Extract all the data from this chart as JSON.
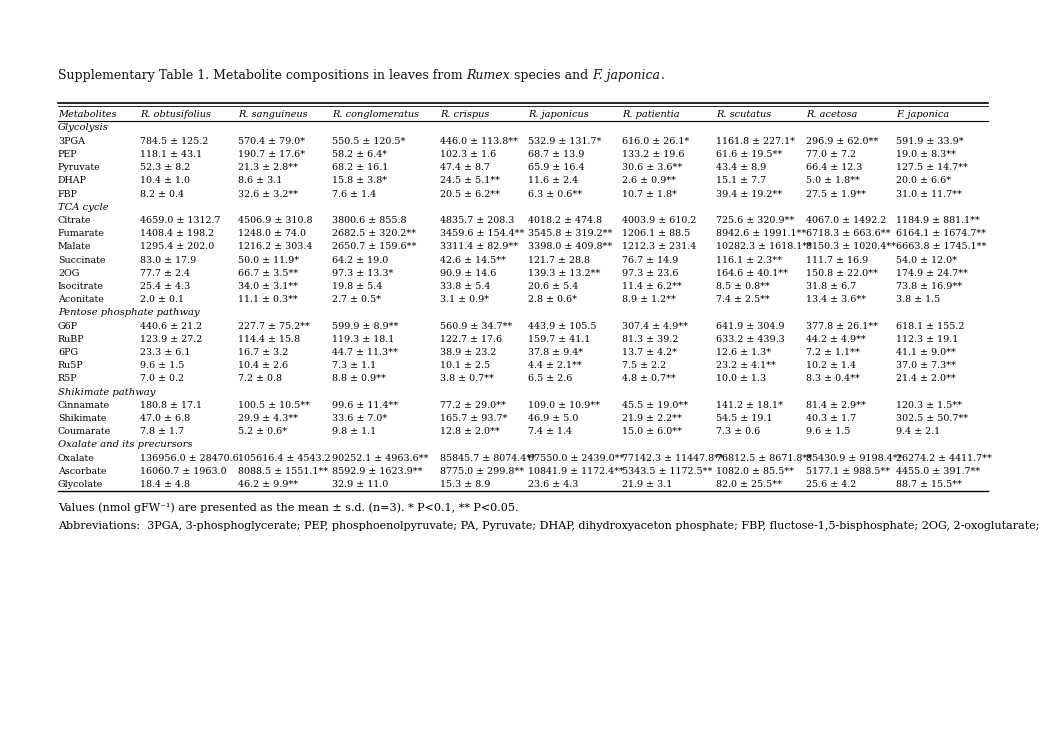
{
  "columns": [
    "Metabolites",
    "R. obtusifolius",
    "R. sanguineus",
    "R. conglomeratus",
    "R. crispus",
    "R. japonicus",
    "R. patientia",
    "R. scutatus",
    "R. acetosa",
    "F. japonica"
  ],
  "sections": [
    {
      "header": "Glycolysis",
      "rows": [
        [
          "3PGA",
          "784.5 ± 125.2",
          "570.4 ± 79.0*",
          "550.5 ± 120.5*",
          "446.0 ± 113.8**",
          "532.9 ± 131.7*",
          "616.0 ± 26.1*",
          "1161.8 ± 227.1*",
          "296.9 ± 62.0**",
          "591.9 ± 33.9*"
        ],
        [
          "PEP",
          "118.1 ± 43.1",
          "190.7 ± 17.6*",
          "58.2 ± 6.4*",
          "102.3 ± 1.6",
          "68.7 ± 13.9",
          "133.2 ± 19.6",
          "61.6 ± 19.5**",
          "77.0 ± 7.2",
          "19.0 ± 8.3**"
        ],
        [
          "Pyruvate",
          "52.3 ± 8.2",
          "21.3 ± 2.8**",
          "68.2 ± 16.1",
          "47.4 ± 8.7",
          "65.9 ± 16.4",
          "30.6 ± 3.6**",
          "43.4 ± 8.9",
          "66.4 ± 12.3",
          "127.5 ± 14.7**"
        ],
        [
          "DHAP",
          "10.4 ± 1.0",
          "8.6 ± 3.1",
          "15.8 ± 3.8*",
          "24.5 ± 5.1**",
          "11.6 ± 2.4",
          "2.6 ± 0.9**",
          "15.1 ± 7.7",
          "5.0 ± 1.8**",
          "20.0 ± 6.6*"
        ],
        [
          "FBP",
          "8.2 ± 0.4",
          "32.6 ± 3.2**",
          "7.6 ± 1.4",
          "20.5 ± 6.2**",
          "6.3 ± 0.6**",
          "10.7 ± 1.8*",
          "39.4 ± 19.2**",
          "27.5 ± 1.9**",
          "31.0 ± 11.7**"
        ]
      ]
    },
    {
      "header": "TCA cycle",
      "rows": [
        [
          "Citrate",
          "4659.0 ± 1312.7",
          "4506.9 ± 310.8",
          "3800.6 ± 855.8",
          "4835.7 ± 208.3",
          "4018.2 ± 474.8",
          "4003.9 ± 610.2",
          "725.6 ± 320.9**",
          "4067.0 ± 1492.2",
          "1184.9 ± 881.1**"
        ],
        [
          "Fumarate",
          "1408.4 ± 198.2",
          "1248.0 ± 74.0",
          "2682.5 ± 320.2**",
          "3459.6 ± 154.4**",
          "3545.8 ± 319.2**",
          "1206.1 ± 88.5",
          "8942.6 ± 1991.1**",
          "6718.3 ± 663.6**",
          "6164.1 ± 1674.7**"
        ],
        [
          "Malate",
          "1295.4 ± 202.0",
          "1216.2 ± 303.4",
          "2650.7 ± 159.6**",
          "3311.4 ± 82.9**",
          "3398.0 ± 409.8**",
          "1212.3 ± 231.4",
          "10282.3 ± 1618.1**",
          "8150.3 ± 1020.4**",
          "6663.8 ± 1745.1**"
        ],
        [
          "Succinate",
          "83.0 ± 17.9",
          "50.0 ± 11.9*",
          "64.2 ± 19.0",
          "42.6 ± 14.5**",
          "121.7 ± 28.8",
          "76.7 ± 14.9",
          "116.1 ± 2.3**",
          "111.7 ± 16.9",
          "54.0 ± 12.0*"
        ],
        [
          "2OG",
          "77.7 ± 2.4",
          "66.7 ± 3.5**",
          "97.3 ± 13.3*",
          "90.9 ± 14.6",
          "139.3 ± 13.2**",
          "97.3 ± 23.6",
          "164.6 ± 40.1**",
          "150.8 ± 22.0**",
          "174.9 ± 24.7**"
        ],
        [
          "Isocitrate",
          "25.4 ± 4.3",
          "34.0 ± 3.1**",
          "19.8 ± 5.4",
          "33.8 ± 5.4",
          "20.6 ± 5.4",
          "11.4 ± 6.2**",
          "8.5 ± 0.8**",
          "31.8 ± 6.7",
          "73.8 ± 16.9**"
        ],
        [
          "Aconitate",
          "2.0 ± 0.1",
          "11.1 ± 0.3**",
          "2.7 ± 0.5*",
          "3.1 ± 0.9*",
          "2.8 ± 0.6*",
          "8.9 ± 1.2**",
          "7.4 ± 2.5**",
          "13.4 ± 3.6**",
          "3.8 ± 1.5"
        ]
      ]
    },
    {
      "header": "Pentose phosphate pathway",
      "rows": [
        [
          "G6P",
          "440.6 ± 21.2",
          "227.7 ± 75.2**",
          "599.9 ± 8.9**",
          "560.9 ± 34.7**",
          "443.9 ± 105.5",
          "307.4 ± 4.9**",
          "641.9 ± 304.9",
          "377.8 ± 26.1**",
          "618.1 ± 155.2"
        ],
        [
          "RuBP",
          "123.9 ± 27.2",
          "114.4 ± 15.8",
          "119.3 ± 18.1",
          "122.7 ± 17.6",
          "159.7 ± 41.1",
          "81.3 ± 39.2",
          "633.2 ± 439.3",
          "44.2 ± 4.9**",
          "112.3 ± 19.1"
        ],
        [
          "6PG",
          "23.3 ± 6.1",
          "16.7 ± 3.2",
          "44.7 ± 11.3**",
          "38.9 ± 23.2",
          "37.8 ± 9.4*",
          "13.7 ± 4.2*",
          "12.6 ± 1.3*",
          "7.2 ± 1.1**",
          "41.1 ± 9.0**"
        ],
        [
          "Ru5P",
          "9.6 ± 1.5",
          "10.4 ± 2.6",
          "7.3 ± 1.1",
          "10.1 ± 2.5",
          "4.4 ± 2.1**",
          "7.5 ± 2.2",
          "23.2 ± 4.1**",
          "10.2 ± 1.4",
          "37.0 ± 7.3**"
        ],
        [
          "R5P",
          "7.0 ± 0.2",
          "7.2 ± 0.8",
          "8.8 ± 0.9**",
          "3.8 ± 0.7**",
          "6.5 ± 2.6",
          "4.8 ± 0.7**",
          "10.0 ± 1.3",
          "8.3 ± 0.4**",
          "21.4 ± 2.0**"
        ]
      ]
    },
    {
      "header": "Shikimate pathway",
      "rows": [
        [
          "Cinnamate",
          "180.8 ± 17.1",
          "100.5 ± 10.5**",
          "99.6 ± 11.4**",
          "77.2 ± 29.0**",
          "109.0 ± 10.9**",
          "45.5 ± 19.0**",
          "141.2 ± 18.1*",
          "81.4 ± 2.9**",
          "120.3 ± 1.5**"
        ],
        [
          "Shikimate",
          "47.0 ± 6.8",
          "29.9 ± 4.3**",
          "33.6 ± 7.0*",
          "165.7 ± 93.7*",
          "46.9 ± 5.0",
          "21.9 ± 2.2**",
          "54.5 ± 19.1",
          "40.3 ± 1.7",
          "302.5 ± 50.7**"
        ],
        [
          "Coumarate",
          "7.8 ± 1.7",
          "5.2 ± 0.6*",
          "9.8 ± 1.1",
          "12.8 ± 2.0**",
          "7.4 ± 1.4",
          "15.0 ± 6.0**",
          "7.3 ± 0.6",
          "9.6 ± 1.5",
          "9.4 ± 2.1"
        ]
      ]
    },
    {
      "header": "Oxalate and its precursors",
      "rows": [
        [
          "Oxalate",
          "136956.0 ± 28470.6",
          "105616.4 ± 4543.2",
          "90252.1 ± 4963.6**",
          "85845.7 ± 8074.4**",
          "67550.0 ± 2439.0**",
          "77142.3 ± 11447.8**",
          "76812.5 ± 8671.8**",
          "85430.9 ± 9198.4**",
          "26274.2 ± 4411.7**"
        ],
        [
          "Ascorbate",
          "16060.7 ± 1963.0",
          "8088.5 ± 1551.1**",
          "8592.9 ± 1623.9**",
          "8775.0 ± 299.8**",
          "10841.9 ± 1172.4**",
          "5343.5 ± 1172.5**",
          "1082.0 ± 85.5**",
          "5177.1 ± 988.5**",
          "4455.0 ± 391.7**"
        ],
        [
          "Glycolate",
          "18.4 ± 4.8",
          "46.2 ± 9.9**",
          "32.9 ± 11.0",
          "15.3 ± 8.9",
          "23.6 ± 4.3",
          "21.9 ± 3.1",
          "82.0 ± 25.5**",
          "25.6 ± 4.2",
          "88.7 ± 15.5**"
        ]
      ]
    }
  ],
  "footnote1": "Values (nmol gFW⁻¹) are presented as the mean ± s.d. (n=3). * P<0.1, ** P<0.05.",
  "footnote2": "Abbreviations:  3PGA, 3-phosphoglycerate; PEP, phosphoenolpyruvate; PA, Pyruvate; DHAP, dihydroxyaceton phosphate; FBP, fluctose-1,5-bisphosphate; 2OG, 2-oxoglutarate;",
  "title_pre": "Supplementary Table 1. Metabolite compositions in leaves from ",
  "title_italic1": "Rumex",
  "title_mid": " species and ",
  "title_italic2": "F. japonica",
  "title_post": ".",
  "bg_color": "#ffffff"
}
